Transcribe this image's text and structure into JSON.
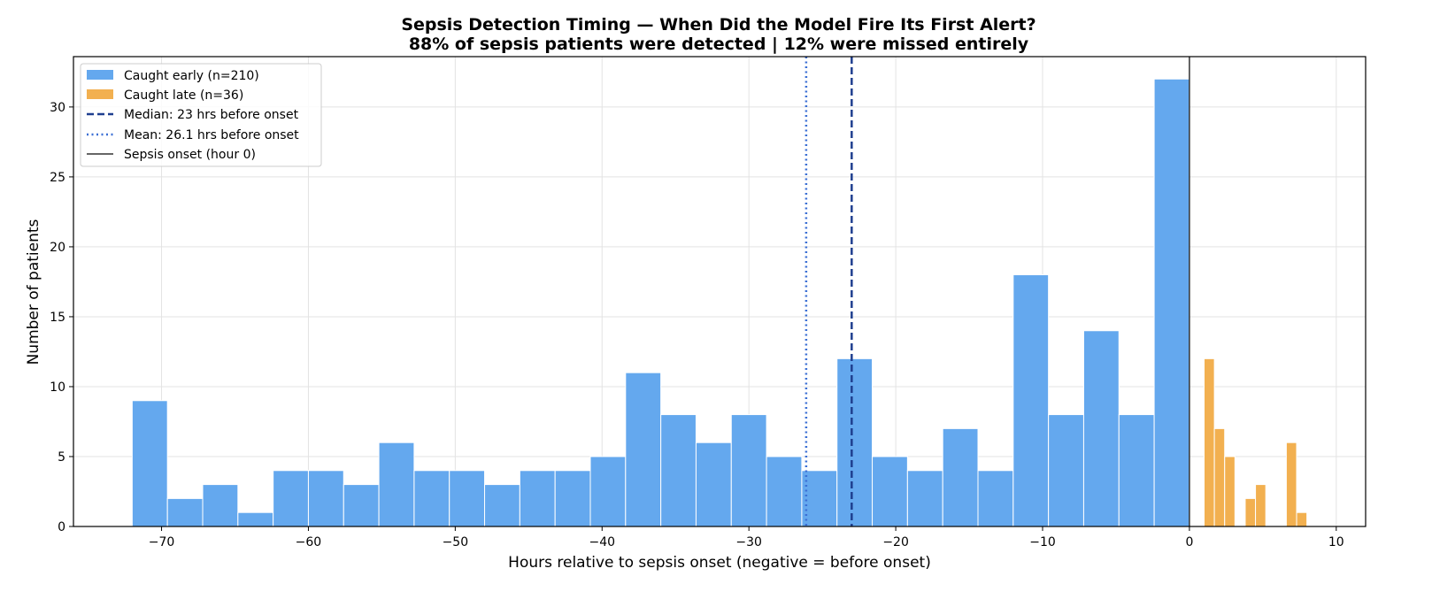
{
  "chart_data": {
    "type": "bar",
    "title": "Sepsis Detection Timing — When Did the Model Fire Its First Alert?",
    "subtitle": "88% of sepsis patients were detected  |  12% were missed entirely",
    "xlabel": "Hours relative to sepsis onset (negative = before onset)",
    "ylabel": "Number of patients",
    "xlim": [
      -76,
      12
    ],
    "ylim": [
      0,
      33.6
    ],
    "xticks": [
      -70,
      -60,
      -50,
      -40,
      -30,
      -20,
      -10,
      0,
      10
    ],
    "xtick_labels": [
      "−70",
      "−60",
      "−50",
      "−40",
      "−30",
      "−20",
      "−10",
      "0",
      "10"
    ],
    "yticks": [
      0,
      5,
      10,
      15,
      20,
      25,
      30
    ],
    "grid": true,
    "legend_placement": "top-left",
    "series": [
      {
        "name": "Caught early (n=210)",
        "color": "#64a8ee",
        "bin_start": -72,
        "bin_width": 2.4,
        "values": [
          9,
          2,
          3,
          1,
          4,
          4,
          3,
          6,
          4,
          4,
          3,
          4,
          4,
          5,
          11,
          8,
          6,
          8,
          5,
          4,
          12,
          5,
          4,
          7,
          4,
          18,
          8,
          14,
          8,
          32
        ]
      },
      {
        "name": "Caught late (n=36)",
        "color": "#f2b050",
        "bin_start": 1.0,
        "bin_width": 0.7,
        "values": [
          12,
          7,
          5,
          0,
          2,
          3,
          0,
          0,
          6,
          1
        ]
      }
    ],
    "reference_lines": [
      {
        "name": "Median: 23 hrs before onset",
        "x": -23,
        "style": "dashed",
        "color": "#1f3f8f"
      },
      {
        "name": "Mean: 26.1 hrs before onset",
        "x": -26.1,
        "style": "dotted",
        "color": "#3b6fd4"
      },
      {
        "name": "Sepsis onset (hour 0)",
        "x": 0,
        "style": "solid",
        "color": "#333333"
      }
    ]
  }
}
